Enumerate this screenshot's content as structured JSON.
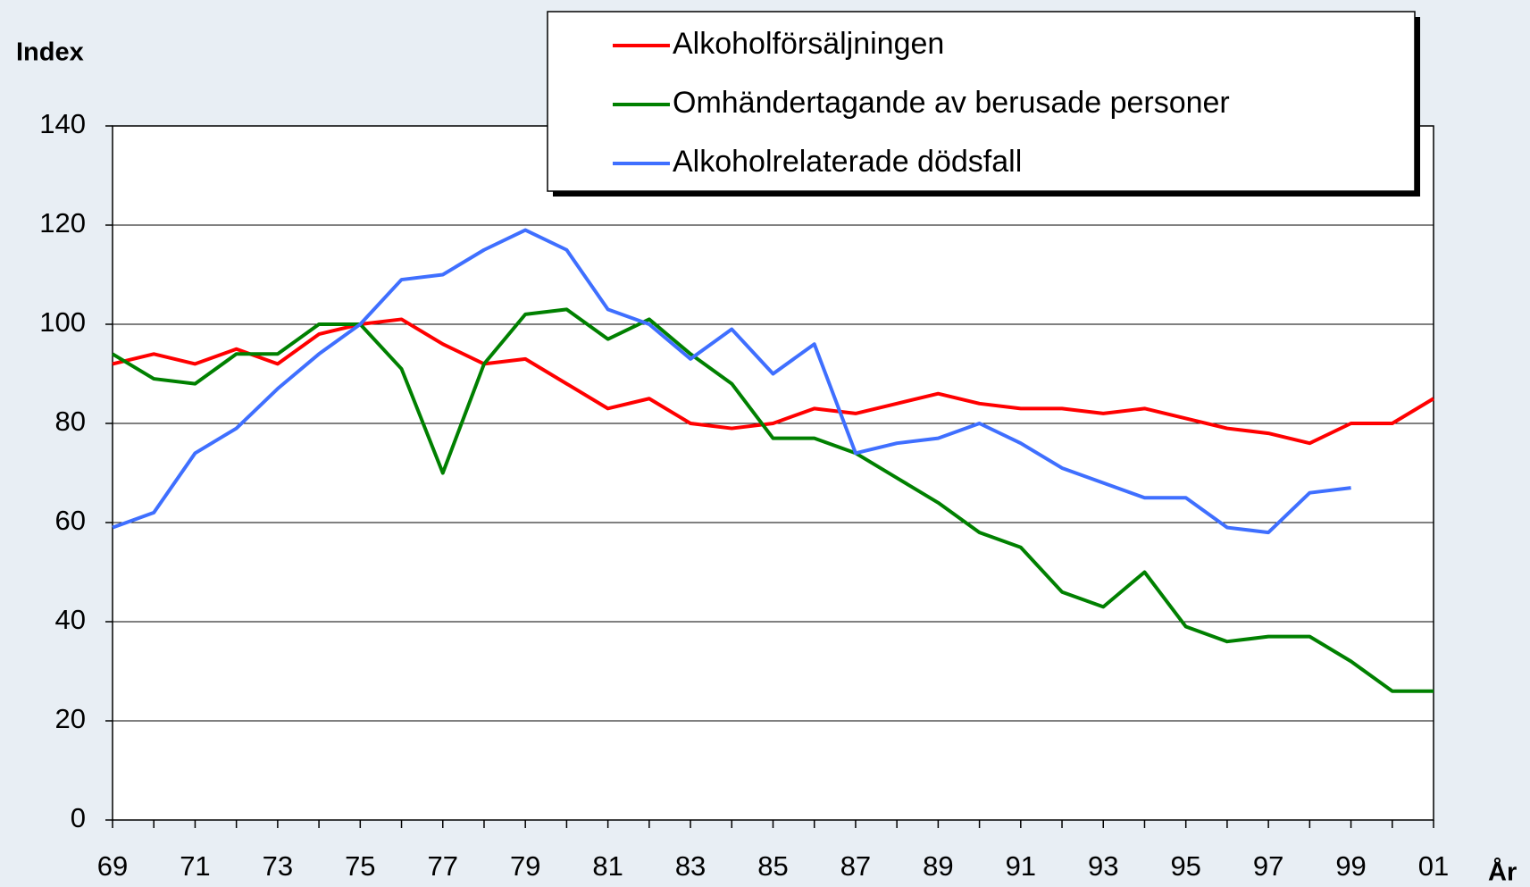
{
  "chart_data": {
    "type": "line",
    "y_label": "Index",
    "x_label": "År",
    "categories": [
      "69",
      null,
      "71",
      null,
      "73",
      null,
      "75",
      null,
      "77",
      null,
      "79",
      null,
      "81",
      null,
      "83",
      null,
      "85",
      null,
      "87",
      null,
      "89",
      null,
      "91",
      null,
      "93",
      null,
      "95",
      null,
      "97",
      null,
      "99",
      null,
      "01"
    ],
    "series": [
      {
        "name": "Alkoholförsäljningen",
        "color": "#ff0000",
        "values": [
          92,
          94,
          92,
          95,
          92,
          98,
          100,
          101,
          96,
          92,
          93,
          88,
          83,
          85,
          80,
          79,
          80,
          83,
          82,
          84,
          86,
          84,
          83,
          83,
          82,
          83,
          81,
          79,
          78,
          76,
          80,
          80,
          85
        ]
      },
      {
        "name": "Omhändertagande av berusade personer",
        "color": "#008000",
        "values": [
          94,
          89,
          88,
          94,
          94,
          100,
          100,
          91,
          70,
          92,
          102,
          103,
          97,
          101,
          94,
          88,
          77,
          77,
          74,
          69,
          64,
          58,
          55,
          46,
          43,
          50,
          39,
          36,
          37,
          37,
          32,
          26,
          26
        ]
      },
      {
        "name": "Alkoholrelaterade dödsfall",
        "color": "#3f6fff",
        "values": [
          59,
          62,
          74,
          79,
          87,
          94,
          100,
          109,
          110,
          115,
          119,
          115,
          103,
          100,
          93,
          99,
          90,
          96,
          74,
          76,
          77,
          80,
          76,
          71,
          68,
          65,
          65,
          59,
          58,
          66,
          67,
          null,
          null
        ]
      }
    ],
    "ylim": [
      0,
      140
    ],
    "yticks": [
      0,
      20,
      40,
      60,
      80,
      100,
      120,
      140
    ],
    "grid": true
  }
}
